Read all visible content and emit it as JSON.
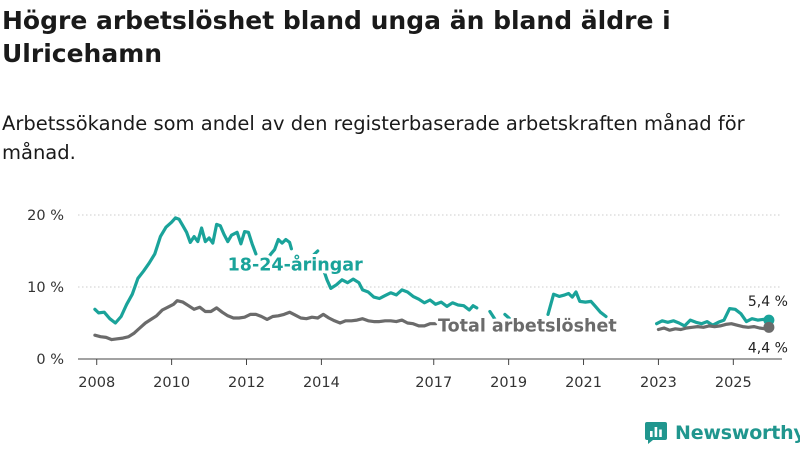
{
  "header": {
    "title": "Högre arbetslöshet bland unga än bland äldre i Ulricehamn",
    "subtitle": "Arbetssökande som andel av den registerbaserade arbetskraften månad för månad."
  },
  "footer": {
    "brand": "Newsworthy"
  },
  "chart_data": {
    "type": "line",
    "title": "Högre arbetslöshet bland unga än bland äldre i Ulricehamn",
    "subtitle": "Arbetssökande som andel av den registerbaserade arbetskraften månad för månad.",
    "xlabel": "",
    "ylabel": "",
    "xlim": [
      2007.5,
      2026.3
    ],
    "ylim": [
      0,
      20
    ],
    "y_ticks": [
      0,
      10,
      20
    ],
    "y_tick_labels": [
      "0 %",
      "10 %",
      "20 %"
    ],
    "x_ticks": [
      2008,
      2010,
      2012,
      2014,
      2017,
      2019,
      2021,
      2023,
      2025
    ],
    "x_tick_labels": [
      "2008",
      "2010",
      "2012",
      "2014",
      "2017",
      "2019",
      "2021",
      "2023",
      "2025"
    ],
    "grid": true,
    "series": [
      {
        "name": "18-24-åringar",
        "color": "#1aa39a",
        "label": "18-24-åringar",
        "end_label": "5,4 %",
        "segments": [
          [
            [
              2007.95,
              6.9
            ],
            [
              2008.05,
              6.4
            ],
            [
              2008.2,
              6.5
            ],
            [
              2008.35,
              5.6
            ],
            [
              2008.5,
              5.0
            ],
            [
              2008.65,
              5.9
            ],
            [
              2008.8,
              7.6
            ],
            [
              2008.95,
              9.0
            ],
            [
              2009.1,
              11.2
            ],
            [
              2009.25,
              12.2
            ],
            [
              2009.4,
              13.3
            ],
            [
              2009.55,
              14.6
            ],
            [
              2009.7,
              17.0
            ],
            [
              2009.85,
              18.3
            ],
            [
              2010.0,
              19.0
            ],
            [
              2010.1,
              19.6
            ],
            [
              2010.2,
              19.4
            ],
            [
              2010.3,
              18.5
            ],
            [
              2010.4,
              17.6
            ],
            [
              2010.5,
              16.2
            ],
            [
              2010.6,
              17.0
            ],
            [
              2010.7,
              16.3
            ],
            [
              2010.8,
              18.2
            ],
            [
              2010.9,
              16.3
            ],
            [
              2011.0,
              16.8
            ],
            [
              2011.1,
              16.1
            ],
            [
              2011.2,
              18.7
            ],
            [
              2011.3,
              18.5
            ],
            [
              2011.4,
              17.3
            ],
            [
              2011.5,
              16.3
            ],
            [
              2011.6,
              17.2
            ],
            [
              2011.75,
              17.6
            ],
            [
              2011.85,
              16.0
            ],
            [
              2011.95,
              17.7
            ],
            [
              2012.05,
              17.6
            ],
            [
              2012.15,
              16.0
            ],
            [
              2012.25,
              14.6
            ]
          ],
          [
            [
              2012.55,
              13.8
            ],
            [
              2012.65,
              14.6
            ],
            [
              2012.75,
              15.2
            ],
            [
              2012.85,
              16.6
            ],
            [
              2012.95,
              16.1
            ],
            [
              2013.05,
              16.6
            ],
            [
              2013.15,
              16.2
            ],
            [
              2013.2,
              15.3
            ]
          ],
          [
            [
              2013.8,
              14.5
            ],
            [
              2013.9,
              15.0
            ]
          ],
          [
            [
              2014.05,
              12.5
            ],
            [
              2014.15,
              11.0
            ],
            [
              2014.25,
              9.8
            ],
            [
              2014.4,
              10.3
            ],
            [
              2014.55,
              11.0
            ],
            [
              2014.7,
              10.6
            ],
            [
              2014.85,
              11.1
            ],
            [
              2015.0,
              10.6
            ],
            [
              2015.1,
              9.6
            ],
            [
              2015.25,
              9.3
            ],
            [
              2015.4,
              8.6
            ],
            [
              2015.55,
              8.4
            ],
            [
              2015.7,
              8.8
            ],
            [
              2015.85,
              9.2
            ],
            [
              2016.0,
              8.9
            ],
            [
              2016.15,
              9.6
            ],
            [
              2016.3,
              9.3
            ],
            [
              2016.45,
              8.7
            ],
            [
              2016.6,
              8.3
            ],
            [
              2016.75,
              7.8
            ],
            [
              2016.9,
              8.2
            ],
            [
              2017.05,
              7.6
            ],
            [
              2017.2,
              7.9
            ],
            [
              2017.35,
              7.3
            ],
            [
              2017.5,
              7.8
            ],
            [
              2017.65,
              7.5
            ],
            [
              2017.8,
              7.4
            ],
            [
              2017.95,
              6.8
            ],
            [
              2018.05,
              7.4
            ],
            [
              2018.15,
              7.1
            ]
          ],
          [
            [
              2018.5,
              6.6
            ],
            [
              2018.65,
              5.4
            ]
          ],
          [
            [
              2018.9,
              6.2
            ],
            [
              2019.05,
              5.5
            ]
          ],
          [
            [
              2020.05,
              6.2
            ],
            [
              2020.2,
              9.0
            ],
            [
              2020.35,
              8.7
            ],
            [
              2020.5,
              8.9
            ],
            [
              2020.6,
              9.1
            ],
            [
              2020.7,
              8.6
            ],
            [
              2020.8,
              9.3
            ],
            [
              2020.9,
              8.0
            ],
            [
              2021.05,
              7.9
            ],
            [
              2021.2,
              8.0
            ],
            [
              2021.3,
              7.4
            ],
            [
              2021.45,
              6.5
            ],
            [
              2021.6,
              5.9
            ]
          ],
          [
            [
              2022.95,
              4.9
            ],
            [
              2023.1,
              5.3
            ],
            [
              2023.25,
              5.1
            ],
            [
              2023.4,
              5.3
            ],
            [
              2023.55,
              5.0
            ],
            [
              2023.7,
              4.6
            ],
            [
              2023.85,
              5.4
            ],
            [
              2024.0,
              5.1
            ],
            [
              2024.15,
              4.9
            ],
            [
              2024.3,
              5.2
            ],
            [
              2024.45,
              4.7
            ],
            [
              2024.6,
              5.1
            ],
            [
              2024.75,
              5.4
            ],
            [
              2024.9,
              7.0
            ],
            [
              2025.05,
              6.9
            ],
            [
              2025.2,
              6.3
            ],
            [
              2025.35,
              5.2
            ],
            [
              2025.5,
              5.6
            ],
            [
              2025.65,
              5.4
            ],
            [
              2025.8,
              5.5
            ],
            [
              2025.95,
              5.4
            ]
          ]
        ]
      },
      {
        "name": "Total arbetslöshet",
        "color": "#6b6b6b",
        "label": "Total arbetslöshet",
        "end_label": "4,4 %",
        "segments": [
          [
            [
              2007.95,
              3.3
            ],
            [
              2008.1,
              3.1
            ],
            [
              2008.25,
              3.0
            ],
            [
              2008.4,
              2.7
            ],
            [
              2008.55,
              2.8
            ],
            [
              2008.7,
              2.9
            ],
            [
              2008.85,
              3.1
            ],
            [
              2009.0,
              3.6
            ],
            [
              2009.15,
              4.3
            ],
            [
              2009.3,
              5.0
            ],
            [
              2009.45,
              5.5
            ],
            [
              2009.6,
              6.0
            ],
            [
              2009.75,
              6.8
            ],
            [
              2009.9,
              7.2
            ],
            [
              2010.05,
              7.6
            ],
            [
              2010.15,
              8.1
            ],
            [
              2010.3,
              7.9
            ],
            [
              2010.45,
              7.4
            ],
            [
              2010.6,
              6.9
            ],
            [
              2010.75,
              7.2
            ],
            [
              2010.9,
              6.6
            ],
            [
              2011.05,
              6.6
            ],
            [
              2011.2,
              7.1
            ],
            [
              2011.35,
              6.5
            ],
            [
              2011.5,
              6.0
            ],
            [
              2011.65,
              5.7
            ],
            [
              2011.8,
              5.7
            ],
            [
              2011.95,
              5.8
            ],
            [
              2012.1,
              6.2
            ],
            [
              2012.25,
              6.2
            ],
            [
              2012.4,
              5.9
            ],
            [
              2012.55,
              5.5
            ],
            [
              2012.7,
              5.9
            ],
            [
              2012.85,
              6.0
            ],
            [
              2013.0,
              6.2
            ],
            [
              2013.15,
              6.5
            ],
            [
              2013.3,
              6.1
            ],
            [
              2013.45,
              5.7
            ],
            [
              2013.6,
              5.6
            ],
            [
              2013.75,
              5.8
            ],
            [
              2013.9,
              5.7
            ],
            [
              2014.05,
              6.2
            ],
            [
              2014.2,
              5.7
            ],
            [
              2014.35,
              5.3
            ],
            [
              2014.5,
              5.0
            ],
            [
              2014.65,
              5.3
            ],
            [
              2014.8,
              5.3
            ],
            [
              2014.95,
              5.4
            ],
            [
              2015.1,
              5.6
            ],
            [
              2015.25,
              5.3
            ],
            [
              2015.4,
              5.2
            ],
            [
              2015.55,
              5.2
            ],
            [
              2015.7,
              5.3
            ],
            [
              2015.85,
              5.3
            ],
            [
              2016.0,
              5.2
            ],
            [
              2016.15,
              5.4
            ],
            [
              2016.3,
              5.0
            ],
            [
              2016.45,
              4.9
            ],
            [
              2016.6,
              4.6
            ],
            [
              2016.75,
              4.6
            ],
            [
              2016.9,
              4.9
            ],
            [
              2017.05,
              4.9
            ]
          ],
          [
            [
              2023.0,
              4.1
            ],
            [
              2023.15,
              4.3
            ],
            [
              2023.3,
              4.0
            ],
            [
              2023.45,
              4.2
            ],
            [
              2023.6,
              4.1
            ],
            [
              2023.75,
              4.3
            ],
            [
              2023.9,
              4.4
            ],
            [
              2024.05,
              4.5
            ],
            [
              2024.2,
              4.4
            ],
            [
              2024.35,
              4.6
            ],
            [
              2024.5,
              4.5
            ],
            [
              2024.65,
              4.6
            ],
            [
              2024.8,
              4.8
            ],
            [
              2024.95,
              4.9
            ],
            [
              2025.1,
              4.7
            ],
            [
              2025.25,
              4.5
            ],
            [
              2025.4,
              4.4
            ],
            [
              2025.55,
              4.5
            ],
            [
              2025.7,
              4.3
            ],
            [
              2025.85,
              4.2
            ],
            [
              2025.95,
              4.4
            ]
          ]
        ]
      }
    ]
  }
}
